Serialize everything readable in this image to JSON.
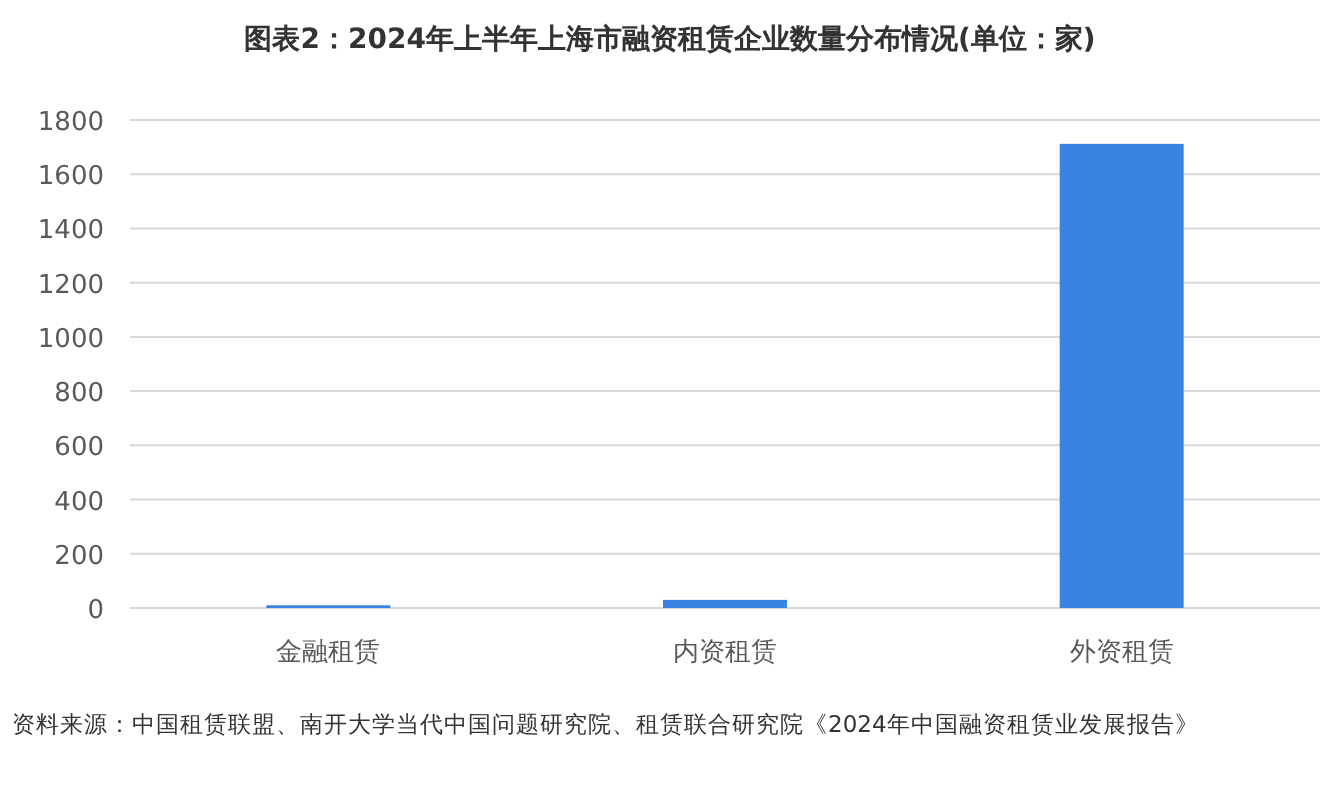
{
  "chart_data": {
    "type": "bar",
    "title": "图表2：2024年上半年上海市融资租赁企业数量分布情况(单位：家)",
    "categories": [
      "金融租赁",
      "内资租赁",
      "外资租赁"
    ],
    "values": [
      10,
      30,
      1712
    ],
    "color": "#3a83e3",
    "ylim": [
      0,
      1800
    ],
    "yticks": [
      0,
      200,
      400,
      600,
      800,
      1000,
      1200,
      1400,
      1600,
      1800
    ],
    "grid": "y",
    "annotations": [
      "资料来源：中国租赁联盟、南开大学当代中国问题研究院、租赁联合研究院《2024年中国融资租赁业发展报告》"
    ]
  }
}
